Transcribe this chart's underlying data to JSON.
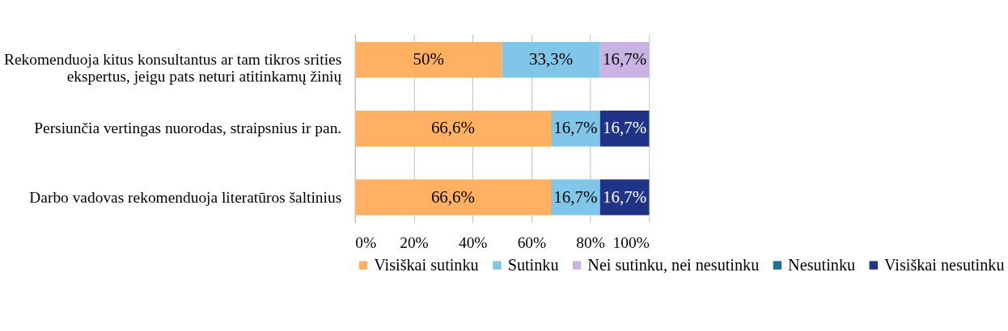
{
  "chart_data": {
    "type": "bar",
    "orientation": "horizontal",
    "stacked": true,
    "categories": [
      "Rekomenduoja kitus konsultantus ar tam tikros srities ekspertus, jeigu pats neturi atitinkamų žinių",
      "Persiunčia vertingas nuorodas, straipsnius ir pan.",
      "Darbo vadovas rekomenduoja literatūros šaltinius"
    ],
    "series": [
      {
        "name": "Visiškai sutinku",
        "color": "#ffb061",
        "values": [
          50,
          66.6,
          66.6
        ],
        "value_labels": [
          "50%",
          "66,6%",
          "66,6%"
        ]
      },
      {
        "name": "Sutinku",
        "color": "#7fc6e8",
        "values": [
          33.3,
          16.7,
          16.7
        ],
        "value_labels": [
          "33,3%",
          "16,7%",
          "16,7%"
        ]
      },
      {
        "name": "Nei sutinku, nei nesutinku",
        "color": "#c9b3e3",
        "values": [
          16.7,
          null,
          null
        ],
        "value_labels": [
          "16,7%",
          null,
          null
        ]
      },
      {
        "name": "Nesutinku",
        "color": "#1f6f9b",
        "values": [
          null,
          null,
          null
        ],
        "value_labels": [
          null,
          null,
          null
        ]
      },
      {
        "name": "Visiškai nesutinku",
        "color": "#1f3487",
        "values": [
          null,
          16.7,
          16.7
        ],
        "value_labels": [
          null,
          "16,7%",
          "16,7%"
        ]
      }
    ],
    "xlim": [
      0,
      100
    ],
    "xticks": [
      {
        "value": 0,
        "label": "0%"
      },
      {
        "value": 20,
        "label": "20%"
      },
      {
        "value": 40,
        "label": "40%"
      },
      {
        "value": 60,
        "label": "60%"
      },
      {
        "value": 80,
        "label": "80%"
      },
      {
        "value": 100,
        "label": "100%"
      }
    ],
    "grid": "x",
    "legend": "bottom"
  }
}
